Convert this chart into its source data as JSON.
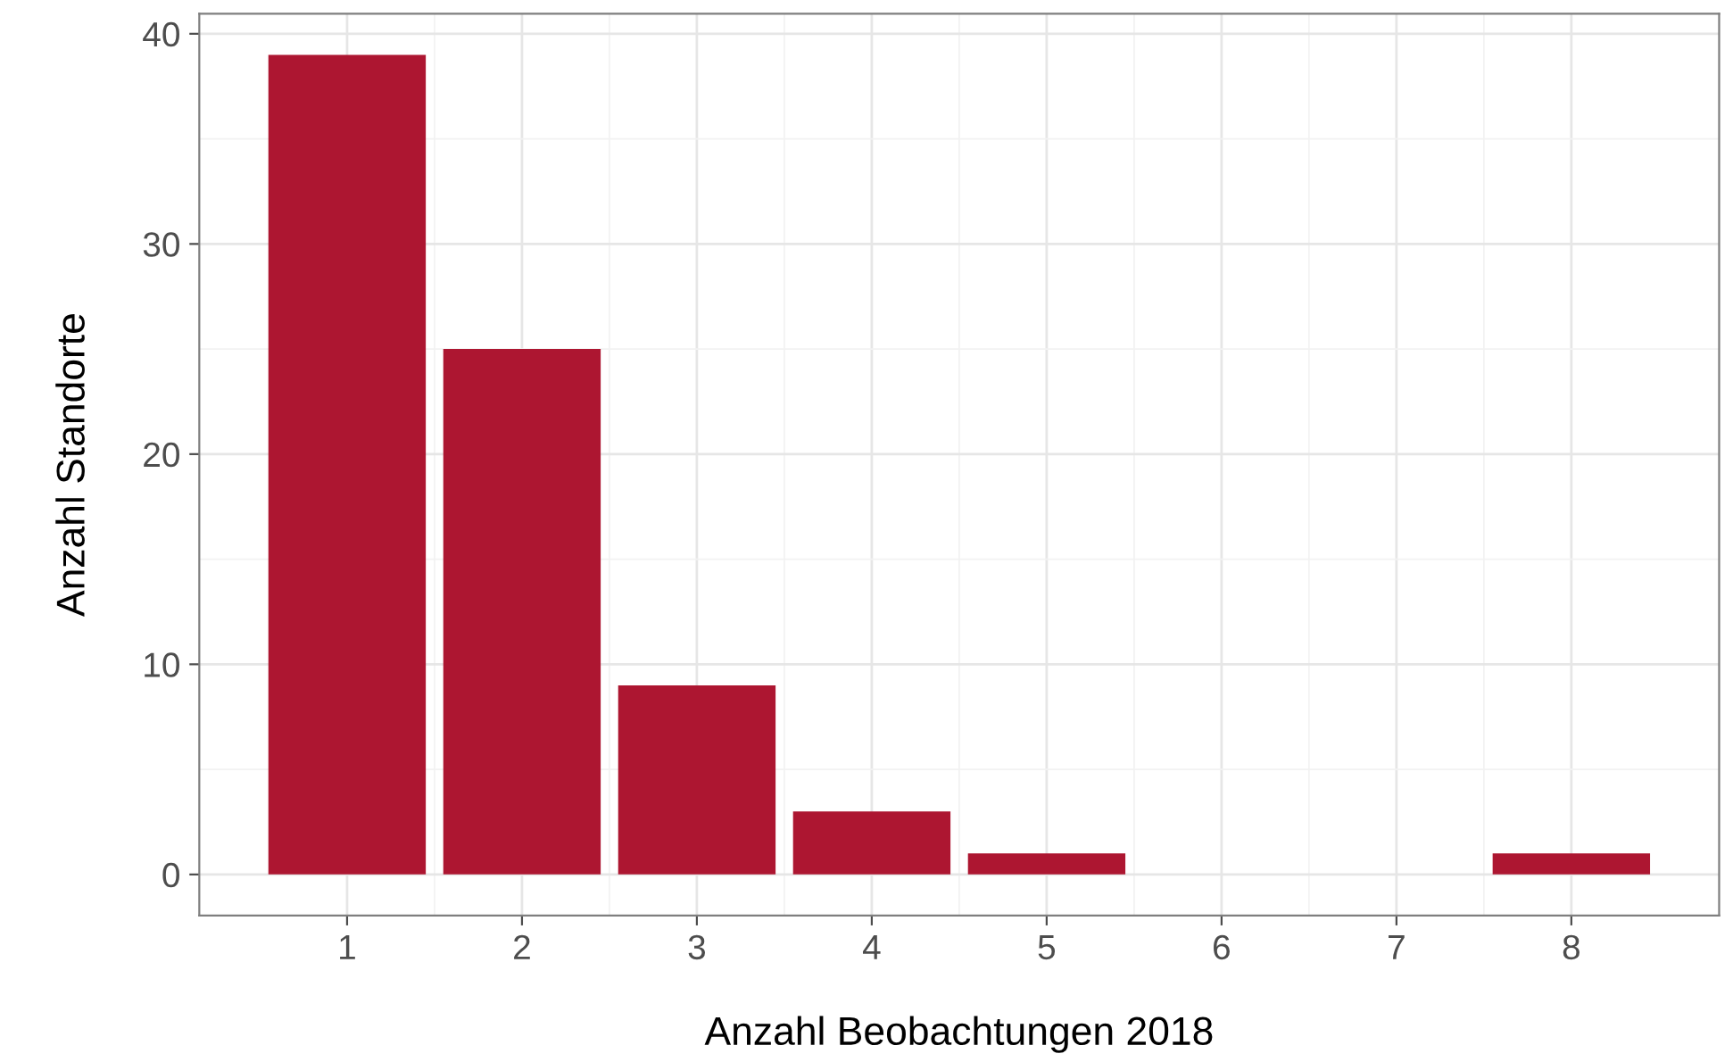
{
  "chart_data": {
    "type": "bar",
    "xlabel": "Anzahl Beobachtungen 2018",
    "ylabel": "Anzahl Standorte",
    "x": [
      1,
      2,
      3,
      4,
      5,
      6,
      7,
      8
    ],
    "values": [
      39,
      25,
      9,
      3,
      1,
      0,
      0,
      1
    ],
    "color": "#ad1631",
    "xlim": [
      0.155,
      8.845
    ],
    "xticks": [
      1,
      2,
      3,
      4,
      5,
      6,
      7,
      8
    ],
    "ylim": [
      -1.95,
      40.95
    ],
    "yticks": [
      0,
      10,
      20,
      30,
      40
    ],
    "grid": true,
    "legend": false
  }
}
